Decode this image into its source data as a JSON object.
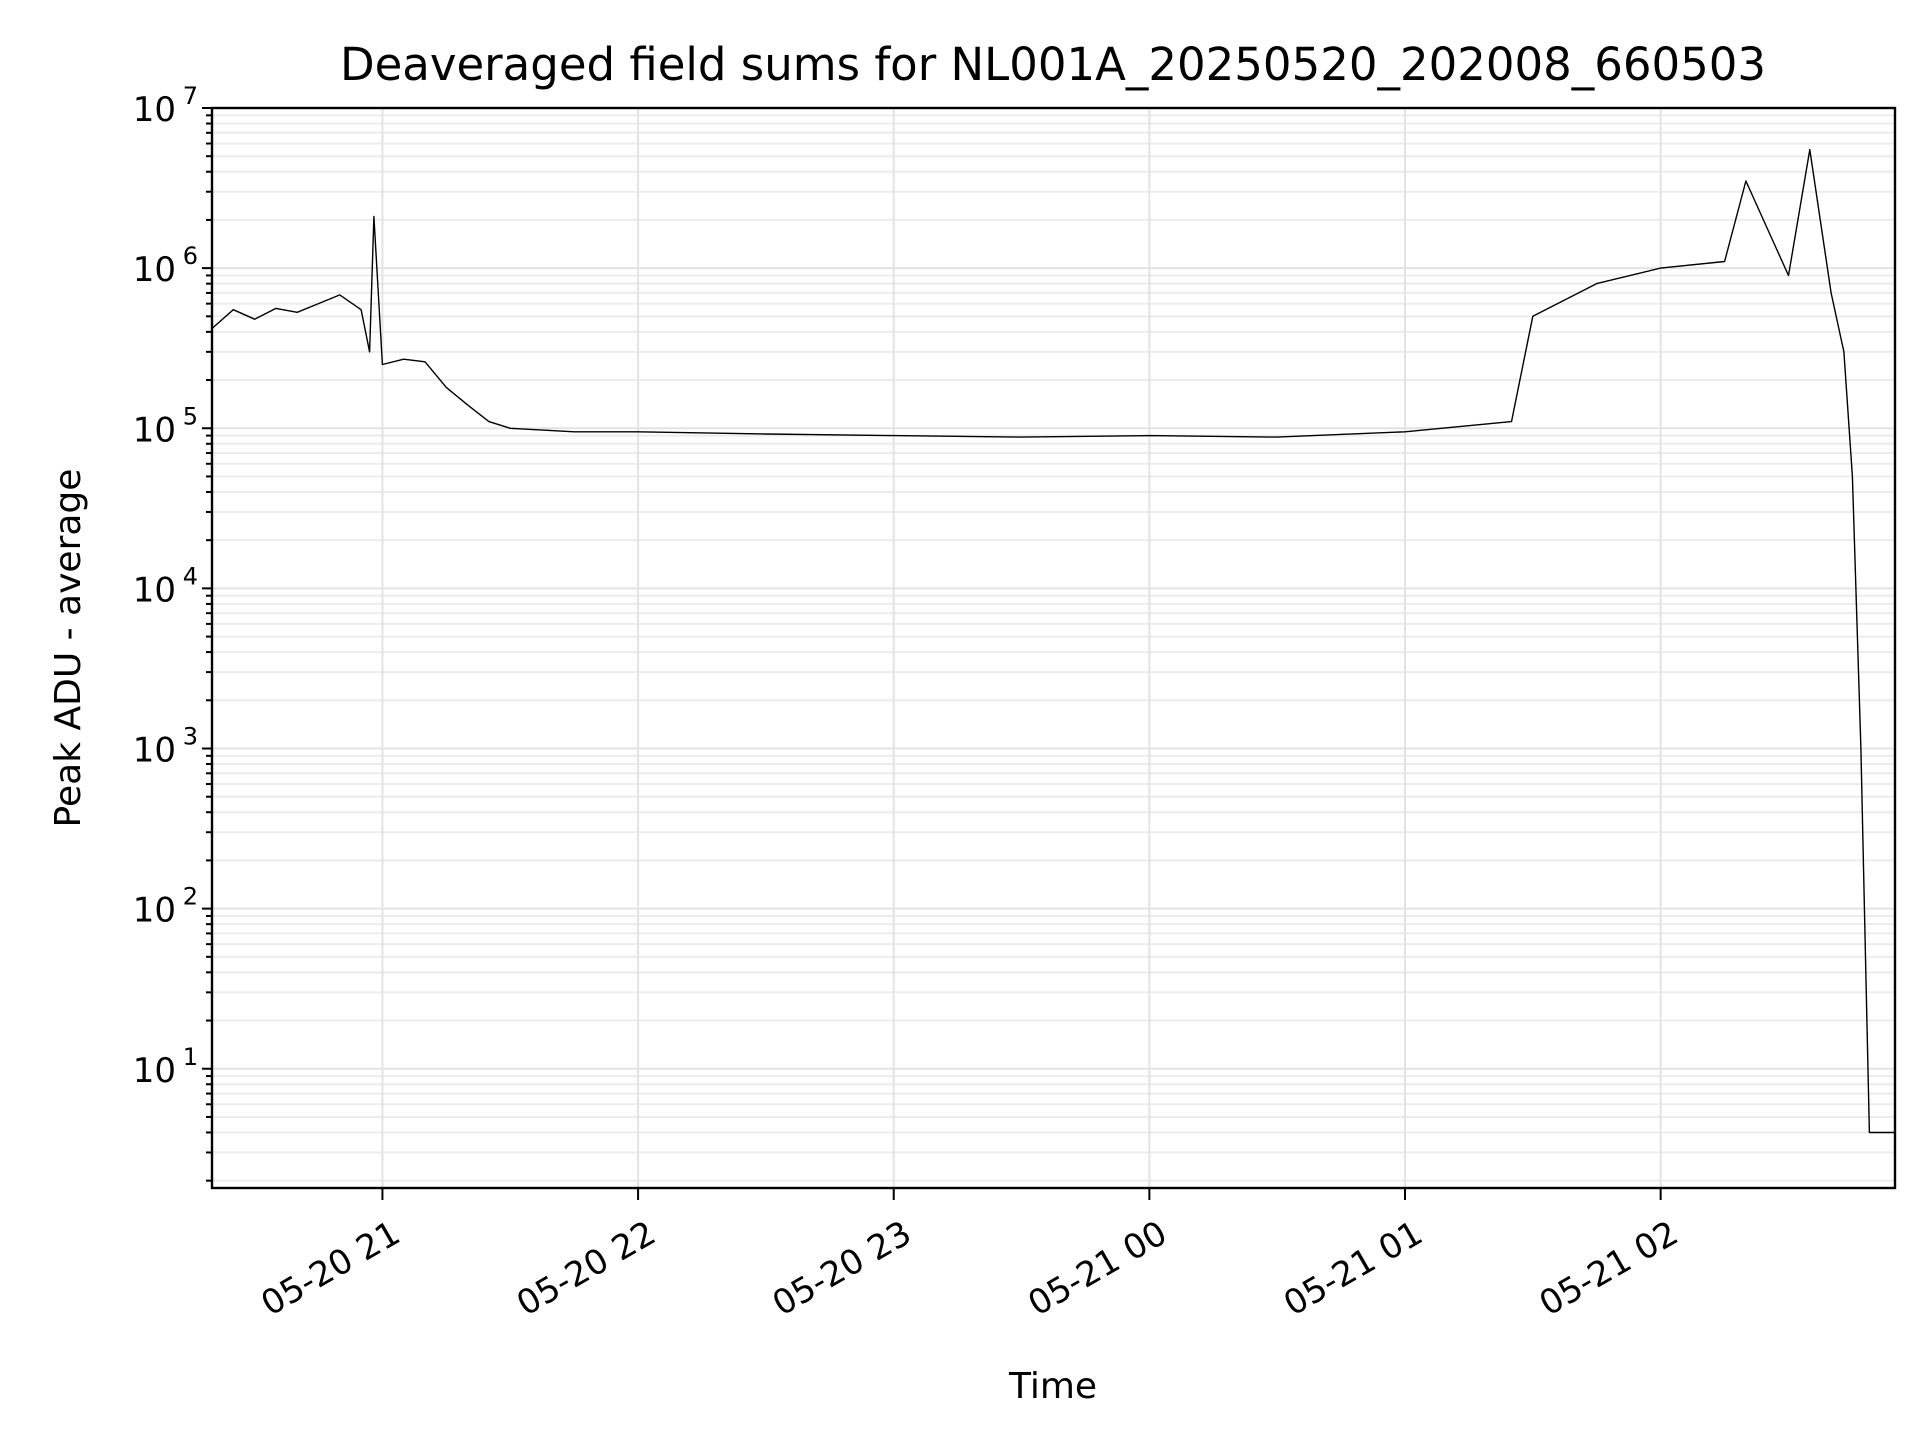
{
  "chart_data": {
    "type": "line",
    "title": "Deaveraged field sums for NL001A_20250520_202008_660503",
    "xlabel": "Time",
    "ylabel": "Peak ADU - average",
    "yscale": "log",
    "ylim": [
      1.8,
      10000000
    ],
    "xlim": [
      "2025-05-20 20:20",
      "2025-05-21 02:55"
    ],
    "grid": true,
    "color": "#000000",
    "x_ticks": [
      {
        "t": "2025-05-20 21:00",
        "label": "05-20 21"
      },
      {
        "t": "2025-05-20 22:00",
        "label": "05-20 22"
      },
      {
        "t": "2025-05-20 23:00",
        "label": "05-20 23"
      },
      {
        "t": "2025-05-21 00:00",
        "label": "05-21 00"
      },
      {
        "t": "2025-05-21 01:00",
        "label": "05-21 01"
      },
      {
        "t": "2025-05-21 02:00",
        "label": "05-21 02"
      }
    ],
    "y_ticks": [
      {
        "value": 10,
        "base": "10",
        "exp": "1"
      },
      {
        "value": 100,
        "base": "10",
        "exp": "2"
      },
      {
        "value": 1000,
        "base": "10",
        "exp": "3"
      },
      {
        "value": 10000,
        "base": "10",
        "exp": "4"
      },
      {
        "value": 100000,
        "base": "10",
        "exp": "5"
      },
      {
        "value": 1000000,
        "base": "10",
        "exp": "6"
      },
      {
        "value": 10000000,
        "base": "10",
        "exp": "7"
      }
    ],
    "series": [
      {
        "points": [
          [
            "2025-05-20 20:20",
            420000
          ],
          [
            "2025-05-20 20:25",
            550000
          ],
          [
            "2025-05-20 20:30",
            480000
          ],
          [
            "2025-05-20 20:35",
            560000
          ],
          [
            "2025-05-20 20:40",
            530000
          ],
          [
            "2025-05-20 20:45",
            600000
          ],
          [
            "2025-05-20 20:50",
            680000
          ],
          [
            "2025-05-20 20:55",
            550000
          ],
          [
            "2025-05-20 20:57",
            300000
          ],
          [
            "2025-05-20 20:58",
            2100000
          ],
          [
            "2025-05-20 21:00",
            250000
          ],
          [
            "2025-05-20 21:05",
            270000
          ],
          [
            "2025-05-20 21:10",
            260000
          ],
          [
            "2025-05-20 21:15",
            180000
          ],
          [
            "2025-05-20 21:20",
            140000
          ],
          [
            "2025-05-20 21:25",
            110000
          ],
          [
            "2025-05-20 21:30",
            100000
          ],
          [
            "2025-05-20 21:45",
            95000
          ],
          [
            "2025-05-20 22:00",
            95000
          ],
          [
            "2025-05-20 22:30",
            92000
          ],
          [
            "2025-05-20 23:00",
            90000
          ],
          [
            "2025-05-20 23:30",
            88000
          ],
          [
            "2025-05-21 00:00",
            90000
          ],
          [
            "2025-05-21 00:30",
            88000
          ],
          [
            "2025-05-21 01:00",
            95000
          ],
          [
            "2025-05-21 01:25",
            110000
          ],
          [
            "2025-05-21 01:30",
            500000
          ],
          [
            "2025-05-21 01:45",
            800000
          ],
          [
            "2025-05-21 02:00",
            1000000
          ],
          [
            "2025-05-21 02:15",
            1100000
          ],
          [
            "2025-05-21 02:20",
            3500000
          ],
          [
            "2025-05-21 02:30",
            900000
          ],
          [
            "2025-05-21 02:35",
            5500000
          ],
          [
            "2025-05-21 02:40",
            700000
          ],
          [
            "2025-05-21 02:43",
            300000
          ],
          [
            "2025-05-21 02:45",
            50000
          ],
          [
            "2025-05-21 02:47",
            1000
          ],
          [
            "2025-05-21 02:48",
            60
          ],
          [
            "2025-05-21 02:49",
            4
          ],
          [
            "2025-05-21 02:55",
            4
          ]
        ]
      }
    ]
  }
}
